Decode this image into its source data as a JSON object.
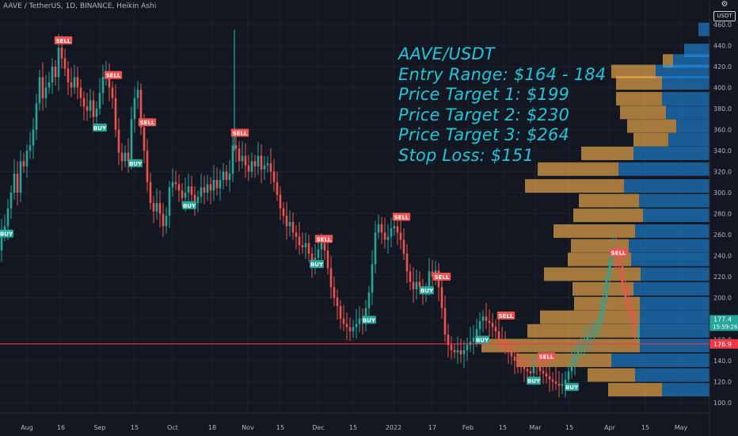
{
  "header": {
    "symbol_line": "AAVE / TetherUS, 1D, BINANCE, Heikin Ashi",
    "currency": "USDT"
  },
  "annotation": [
    "AAVE/USDT",
    "Entry Range: $164 - 184",
    "Price Target 1: $199",
    "Price Target 2: $230",
    "Price Target 3: $264",
    "Stop Loss: $151"
  ],
  "colors": {
    "background": "#131722",
    "up": "#26a69a",
    "down": "#ef5350",
    "annotation": "#22c5d8",
    "horizontal_line": "#f23645",
    "vp_up": "#2196f3",
    "vp_down": "#ffb74d"
  },
  "chart_data": {
    "type": "candlestick",
    "style": "Heikin Ashi",
    "symbol": "AAVE / TetherUS",
    "interval": "1D",
    "exchange": "BINANCE",
    "y_axis": {
      "ylim": [
        95,
        470
      ],
      "ticks": [
        "100.0",
        "120.0",
        "140.0",
        "160.0",
        "180.0",
        "200.0",
        "220.0",
        "240.0",
        "260.0",
        "280.0",
        "300.0",
        "320.0",
        "340.0",
        "360.0",
        "380.0",
        "400.0",
        "420.0",
        "440.0",
        "460.0"
      ]
    },
    "x_axis": {
      "ticks": [
        "Aug",
        "16",
        "Sep",
        "15",
        "Oct",
        "18",
        "Nov",
        "15",
        "Dec",
        "15",
        "2022",
        "17",
        "Feb",
        "15",
        "Mar",
        "15",
        "Apr",
        "15",
        "May"
      ]
    },
    "price_labels": {
      "last_price": "177.4",
      "countdown": "15:59:26",
      "line_price": "176.9"
    },
    "horizontal_line": 156,
    "price_path": [
      [
        0,
        245
      ],
      [
        4,
        262
      ],
      [
        8,
        268
      ],
      [
        12,
        285
      ],
      [
        16,
        300
      ],
      [
        20,
        318
      ],
      [
        24,
        300
      ],
      [
        28,
        330
      ],
      [
        32,
        325
      ],
      [
        36,
        340
      ],
      [
        40,
        345
      ],
      [
        44,
        360
      ],
      [
        48,
        385
      ],
      [
        52,
        410
      ],
      [
        56,
        390
      ],
      [
        60,
        400
      ],
      [
        64,
        405
      ],
      [
        68,
        420
      ],
      [
        72,
        410
      ],
      [
        76,
        438
      ],
      [
        80,
        428
      ],
      [
        84,
        418
      ],
      [
        88,
        405
      ],
      [
        92,
        400
      ],
      [
        96,
        410
      ],
      [
        100,
        400
      ],
      [
        104,
        390
      ],
      [
        108,
        382
      ],
      [
        112,
        378
      ],
      [
        116,
        388
      ],
      [
        120,
        372
      ],
      [
        124,
        380
      ],
      [
        128,
        395
      ],
      [
        132,
        410
      ],
      [
        136,
        415
      ],
      [
        140,
        400
      ],
      [
        144,
        390
      ],
      [
        148,
        360
      ],
      [
        152,
        338
      ],
      [
        156,
        330
      ],
      [
        160,
        338
      ],
      [
        164,
        330
      ],
      [
        168,
        370
      ],
      [
        172,
        390
      ],
      [
        176,
        398
      ],
      [
        180,
        362
      ],
      [
        184,
        340
      ],
      [
        188,
        310
      ],
      [
        192,
        290
      ],
      [
        196,
        282
      ],
      [
        200,
        290
      ],
      [
        204,
        280
      ],
      [
        208,
        268
      ],
      [
        212,
        278
      ],
      [
        216,
        305
      ],
      [
        220,
        310
      ],
      [
        224,
        308
      ],
      [
        228,
        302
      ],
      [
        232,
        295
      ],
      [
        236,
        300
      ],
      [
        240,
        306
      ],
      [
        244,
        298
      ],
      [
        248,
        290
      ],
      [
        252,
        296
      ],
      [
        256,
        305
      ],
      [
        260,
        300
      ],
      [
        264,
        308
      ],
      [
        268,
        302
      ],
      [
        272,
        312
      ],
      [
        276,
        304
      ],
      [
        280,
        312
      ],
      [
        284,
        320
      ],
      [
        288,
        312
      ],
      [
        292,
        318
      ],
      [
        296,
        345
      ],
      [
        300,
        342
      ],
      [
        304,
        330
      ],
      [
        308,
        335
      ],
      [
        312,
        326
      ],
      [
        316,
        320
      ],
      [
        320,
        330
      ],
      [
        324,
        325
      ],
      [
        328,
        335
      ],
      [
        332,
        322
      ],
      [
        336,
        326
      ],
      [
        340,
        328
      ],
      [
        344,
        320
      ],
      [
        348,
        310
      ],
      [
        352,
        298
      ],
      [
        356,
        285
      ],
      [
        360,
        278
      ],
      [
        364,
        268
      ],
      [
        368,
        272
      ],
      [
        372,
        262
      ],
      [
        376,
        258
      ],
      [
        380,
        250
      ],
      [
        384,
        248
      ],
      [
        388,
        252
      ],
      [
        392,
        242
      ],
      [
        396,
        232
      ],
      [
        400,
        238
      ],
      [
        404,
        246
      ],
      [
        408,
        252
      ],
      [
        412,
        245
      ],
      [
        416,
        228
      ],
      [
        420,
        210
      ],
      [
        424,
        200
      ],
      [
        428,
        192
      ],
      [
        432,
        180
      ],
      [
        436,
        175
      ],
      [
        440,
        172
      ],
      [
        444,
        168
      ],
      [
        448,
        172
      ],
      [
        452,
        175
      ],
      [
        456,
        180
      ],
      [
        460,
        178
      ],
      [
        464,
        190
      ],
      [
        468,
        205
      ],
      [
        472,
        232
      ],
      [
        476,
        262
      ],
      [
        480,
        270
      ],
      [
        484,
        262
      ],
      [
        488,
        255
      ],
      [
        492,
        258
      ],
      [
        496,
        266
      ],
      [
        500,
        268
      ],
      [
        504,
        262
      ],
      [
        508,
        255
      ],
      [
        512,
        242
      ],
      [
        516,
        225
      ],
      [
        520,
        215
      ],
      [
        524,
        208
      ],
      [
        528,
        215
      ],
      [
        532,
        210
      ],
      [
        536,
        205
      ],
      [
        540,
        208
      ],
      [
        544,
        225
      ],
      [
        548,
        220
      ],
      [
        552,
        226
      ],
      [
        556,
        210
      ],
      [
        560,
        190
      ],
      [
        564,
        165
      ],
      [
        568,
        155
      ],
      [
        572,
        150
      ],
      [
        576,
        148
      ],
      [
        580,
        150
      ],
      [
        584,
        146
      ],
      [
        588,
        150
      ],
      [
        592,
        155
      ],
      [
        596,
        158
      ],
      [
        600,
        162
      ],
      [
        604,
        170
      ],
      [
        608,
        178
      ],
      [
        612,
        182
      ],
      [
        616,
        178
      ],
      [
        620,
        176
      ],
      [
        624,
        172
      ],
      [
        628,
        168
      ],
      [
        632,
        160
      ],
      [
        636,
        158
      ],
      [
        640,
        152
      ],
      [
        644,
        148
      ],
      [
        648,
        144
      ],
      [
        652,
        140
      ],
      [
        656,
        138
      ],
      [
        660,
        135
      ],
      [
        664,
        132
      ],
      [
        668,
        130
      ],
      [
        672,
        128
      ],
      [
        676,
        135
      ],
      [
        680,
        134
      ],
      [
        684,
        130
      ],
      [
        688,
        128
      ],
      [
        692,
        125
      ],
      [
        696,
        122
      ],
      [
        700,
        120
      ],
      [
        704,
        118
      ],
      [
        708,
        116
      ],
      [
        712,
        118
      ],
      [
        716,
        122
      ],
      [
        720,
        130
      ],
      [
        724,
        138
      ],
      [
        728,
        145
      ],
      [
        732,
        150
      ],
      [
        736,
        155
      ],
      [
        740,
        158
      ],
      [
        744,
        162
      ],
      [
        748,
        165
      ],
      [
        752,
        170
      ],
      [
        756,
        175
      ],
      [
        760,
        185
      ],
      [
        764,
        200
      ],
      [
        768,
        220
      ],
      [
        772,
        238
      ],
      [
        776,
        245
      ],
      [
        780,
        240
      ],
      [
        784,
        230
      ],
      [
        788,
        212
      ],
      [
        792,
        200
      ],
      [
        796,
        190
      ],
      [
        800,
        180
      ],
      [
        804,
        162
      ],
      [
        808,
        172
      ]
    ],
    "signals": [
      {
        "label": "SELL",
        "type": "sell",
        "x": 80,
        "price": 445
      },
      {
        "label": "BUY",
        "type": "buy",
        "x": 126,
        "price": 362
      },
      {
        "label": "SELL",
        "type": "sell",
        "x": 143,
        "price": 412
      },
      {
        "label": "SELL",
        "type": "sell",
        "x": 186,
        "price": 367
      },
      {
        "label": "BUY",
        "type": "buy",
        "x": 171,
        "price": 328
      },
      {
        "label": "BUY",
        "type": "buy",
        "x": 239,
        "price": 288
      },
      {
        "label": "SELL",
        "type": "sell",
        "x": 303,
        "price": 357
      },
      {
        "label": "SELL",
        "type": "sell",
        "x": 409,
        "price": 256
      },
      {
        "label": "BUY",
        "type": "buy",
        "x": 400,
        "price": 232
      },
      {
        "label": "BUY",
        "type": "buy",
        "x": 466,
        "price": 179
      },
      {
        "label": "SELL",
        "type": "sell",
        "x": 507,
        "price": 277
      },
      {
        "label": "BUY",
        "type": "buy",
        "x": 539,
        "price": 207
      },
      {
        "label": "SELL",
        "type": "sell",
        "x": 558,
        "price": 220
      },
      {
        "label": "BUY",
        "type": "buy",
        "x": 609,
        "price": 160
      },
      {
        "label": "SELL",
        "type": "sell",
        "x": 639,
        "price": 183
      },
      {
        "label": "SELL",
        "type": "sell",
        "x": 690,
        "price": 144
      },
      {
        "label": "BUY",
        "type": "buy",
        "x": 674,
        "price": 121
      },
      {
        "label": "BUY",
        "type": "buy",
        "x": 722,
        "price": 115
      },
      {
        "label": "SELL",
        "type": "sell",
        "x": 781,
        "price": 243
      },
      {
        "label": "BUY",
        "type": "buy",
        "x": 8,
        "price": 261
      }
    ],
    "volume_profile": [
      {
        "price": 455,
        "up": 14,
        "down": 0
      },
      {
        "price": 435,
        "up": 32,
        "down": 0
      },
      {
        "price": 425,
        "up": 46,
        "down": 13
      },
      {
        "price": 415,
        "up": 68,
        "down": 56
      },
      {
        "price": 404,
        "up": 60,
        "down": 58
      },
      {
        "price": 389,
        "up": 60,
        "down": 58
      },
      {
        "price": 376,
        "up": 55,
        "down": 58
      },
      {
        "price": 363,
        "up": 42,
        "down": 62
      },
      {
        "price": 350,
        "up": 52,
        "down": 44
      },
      {
        "price": 337,
        "up": 96,
        "down": 66
      },
      {
        "price": 322,
        "up": 115,
        "down": 102
      },
      {
        "price": 306,
        "up": 108,
        "down": 125
      },
      {
        "price": 292,
        "up": 89,
        "down": 76
      },
      {
        "price": 278,
        "up": 84,
        "down": 88
      },
      {
        "price": 263,
        "up": 94,
        "down": 103
      },
      {
        "price": 249,
        "up": 102,
        "down": 73
      },
      {
        "price": 236,
        "up": 99,
        "down": 80
      },
      {
        "price": 222,
        "up": 87,
        "down": 122
      },
      {
        "price": 208,
        "up": 96,
        "down": 77
      },
      {
        "price": 194,
        "up": 88,
        "down": 83
      },
      {
        "price": 181,
        "up": 88,
        "down": 126
      },
      {
        "price": 168,
        "up": 88,
        "down": 142
      },
      {
        "price": 154,
        "up": 88,
        "down": 200
      },
      {
        "price": 140,
        "up": 124,
        "down": 120
      },
      {
        "price": 126,
        "up": 94,
        "down": 60
      },
      {
        "price": 112,
        "up": 60,
        "down": 68
      }
    ]
  }
}
